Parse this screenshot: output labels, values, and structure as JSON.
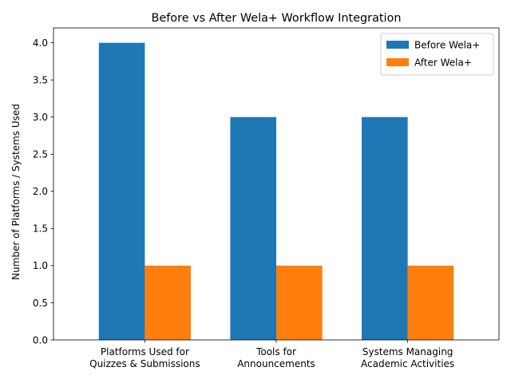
{
  "chart_data": {
    "type": "bar",
    "title": "Before vs After Wela+ Workflow Integration",
    "xlabel": "",
    "ylabel": "Number of Platforms / Systems Used",
    "categories": [
      [
        "Platforms Used for",
        "Quizzes & Submissions"
      ],
      [
        "Tools for",
        "Announcements"
      ],
      [
        "Systems Managing",
        "Academic Activities"
      ]
    ],
    "series": [
      {
        "name": "Before Wela+",
        "values": [
          4,
          3,
          3
        ],
        "color": "#1f77b4"
      },
      {
        "name": "After Wela+",
        "values": [
          1,
          1,
          1
        ],
        "color": "#ff7f0e"
      }
    ],
    "ylim": [
      0,
      4.2
    ],
    "yticks": [
      "0.0",
      "0.5",
      "1.0",
      "1.5",
      "2.0",
      "2.5",
      "3.0",
      "3.5",
      "4.0"
    ],
    "grid": false,
    "legend": "top-right"
  }
}
